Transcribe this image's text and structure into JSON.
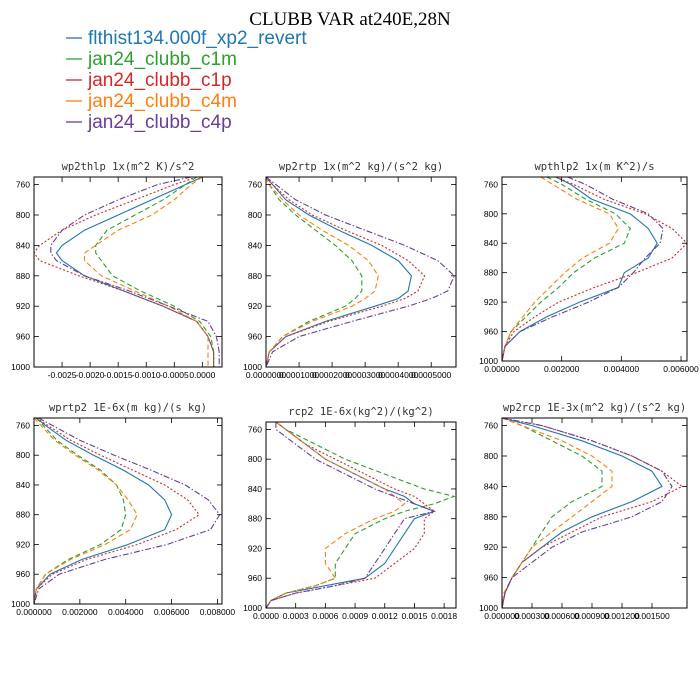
{
  "title": "CLUBB VAR at240E,28N",
  "colors": {
    "flthist134.000f_xp2_revert": "#1f77b4",
    "jan24_clubb_c1m": "#2ca02c",
    "jan24_clubb_c1p": "#d62728",
    "jan24_clubb_c4m": "#ff7f0e",
    "jan24_clubb_c4p": "#6a3d9a"
  },
  "legend": [
    {
      "name": "flthist134.000f_xp2_revert",
      "color": "#1f77b4",
      "dash": "solid"
    },
    {
      "name": "jan24_clubb_c1m",
      "color": "#2ca02c",
      "dash": "dashed"
    },
    {
      "name": "jan24_clubb_c1p",
      "color": "#d62728",
      "dash": "dotted"
    },
    {
      "name": "jan24_clubb_c4m",
      "color": "#ff7f0e",
      "dash": "dashed"
    },
    {
      "name": "jan24_clubb_c4p",
      "color": "#6a3d9a",
      "dash": "dashdot"
    }
  ],
  "chart_data": [
    {
      "type": "line",
      "title": "wp2thlp  1x(m^2 K)/s^2",
      "xlim": [
        -0.003,
        0.00035
      ],
      "ylim": [
        1000,
        750
      ],
      "xticks": [
        -0.0025,
        -0.002,
        -0.0015,
        -0.001,
        -0.0005,
        0.0
      ],
      "xtick_labels": [
        "-0.0025",
        "-0.0020",
        "-0.0015",
        "-0.0010",
        "-0.0005",
        "0.0000"
      ],
      "yticks": [
        760,
        800,
        840,
        880,
        920,
        960,
        1000
      ],
      "y": [
        750,
        760,
        780,
        800,
        820,
        840,
        850,
        860,
        880,
        900,
        920,
        940,
        960,
        980,
        1000
      ],
      "series": [
        {
          "name": "flthist134.000f_xp2_revert",
          "x": [
            0.0,
            -0.0003,
            -0.0009,
            -0.0015,
            -0.0021,
            -0.0025,
            -0.0026,
            -0.0025,
            -0.0021,
            -0.0014,
            -0.0007,
            -0.0001,
            0.0001,
            0.0002,
            0.0002
          ]
        },
        {
          "name": "jan24_clubb_c1m",
          "x": [
            -0.0001,
            -0.0003,
            -0.0007,
            -0.0012,
            -0.0017,
            -0.0019,
            -0.0019,
            -0.0018,
            -0.0016,
            -0.0011,
            -0.0005,
            -5e-05,
            0.00015,
            0.0002,
            0.0002
          ]
        },
        {
          "name": "jan24_clubb_c1p",
          "x": [
            -0.0001,
            -0.0005,
            -0.0012,
            -0.0019,
            -0.0025,
            -0.0029,
            -0.003,
            -0.0029,
            -0.0022,
            -0.0014,
            -0.0007,
            -0.0001,
            0.0001,
            0.0002,
            0.0002
          ]
        },
        {
          "name": "jan24_clubb_c4m",
          "x": [
            0.0,
            -0.0002,
            -0.0005,
            -0.0009,
            -0.0015,
            -0.0019,
            -0.0021,
            -0.0021,
            -0.0018,
            -0.0012,
            -0.0006,
            -0.0001,
            0.0001,
            0.0001,
            0.0001
          ]
        },
        {
          "name": "jan24_clubb_c4p",
          "x": [
            -0.0002,
            -0.0008,
            -0.0015,
            -0.0021,
            -0.0025,
            -0.0027,
            -0.0027,
            -0.0026,
            -0.0021,
            -0.0013,
            -0.0006,
            0.0001,
            0.00025,
            0.0003,
            0.0003
          ]
        }
      ]
    },
    {
      "type": "line",
      "title": "wp2rtp  1x(m^2 kg)/(s^2 kg)",
      "xlim": [
        0.0,
        0.000575
      ],
      "ylim": [
        1000,
        750
      ],
      "xticks": [
        0.0,
        0.0001,
        0.0002,
        0.0003,
        0.0004,
        0.0005
      ],
      "xtick_labels": [
        "0.0000000",
        "0.0001000",
        "0.0002000",
        "0.0003000",
        "0.0004000",
        "0.0005000"
      ],
      "yticks": [
        760,
        800,
        840,
        880,
        920,
        960,
        1000
      ],
      "y": [
        750,
        760,
        780,
        800,
        820,
        840,
        860,
        880,
        900,
        910,
        920,
        940,
        960,
        980,
        1000
      ],
      "series": [
        {
          "name": "flthist134.000f_xp2_revert",
          "x": [
            0.0,
            2e-05,
            6e-05,
            0.00013,
            0.00022,
            0.00032,
            0.0004,
            0.00044,
            0.00043,
            0.0004,
            0.00033,
            0.00018,
            6e-05,
            1e-05,
            0.0
          ]
        },
        {
          "name": "jan24_clubb_c1m",
          "x": [
            0.0,
            1e-05,
            4e-05,
            9e-05,
            0.00015,
            0.00021,
            0.00026,
            0.00029,
            0.00029,
            0.00027,
            0.00024,
            0.00013,
            5e-05,
            1e-05,
            0.0
          ]
        },
        {
          "name": "jan24_clubb_c1p",
          "x": [
            0.0,
            2e-05,
            7e-05,
            0.00014,
            0.00024,
            0.00035,
            0.00043,
            0.00048,
            0.00046,
            0.00042,
            0.00035,
            0.00019,
            6e-05,
            1e-05,
            0.0
          ]
        },
        {
          "name": "jan24_clubb_c4m",
          "x": [
            0.0,
            1e-05,
            5e-05,
            0.0001,
            0.00017,
            0.00025,
            0.00031,
            0.00034,
            0.00033,
            0.0003,
            0.00026,
            0.00014,
            5e-05,
            1e-05,
            0.0
          ]
        },
        {
          "name": "jan24_clubb_c4p",
          "x": [
            0.0,
            3e-05,
            9e-05,
            0.00018,
            0.0003,
            0.00042,
            0.00052,
            0.00057,
            0.00055,
            0.0005,
            0.00043,
            0.00026,
            0.0001,
            2e-05,
            0.0
          ]
        }
      ]
    },
    {
      "type": "line",
      "title": "wpthlp2  1x(m K^2)/s",
      "xlim": [
        0.0,
        0.0062
      ],
      "ylim": [
        1000,
        750
      ],
      "xticks": [
        0.0,
        0.002,
        0.004,
        0.006
      ],
      "xtick_labels": [
        "0.000000",
        "0.002000",
        "0.004000",
        "0.006000"
      ],
      "yticks": [
        760,
        800,
        840,
        880,
        920,
        960,
        1000
      ],
      "y": [
        750,
        760,
        780,
        800,
        820,
        840,
        860,
        880,
        900,
        920,
        940,
        960,
        980,
        1000
      ],
      "series": [
        {
          "name": "flthist134.000f_xp2_revert",
          "x": [
            0.0018,
            0.0023,
            0.003,
            0.0043,
            0.0049,
            0.0052,
            0.0049,
            0.0041,
            0.0039,
            0.0026,
            0.0015,
            0.0006,
            0.0001,
            0.0
          ]
        },
        {
          "name": "jan24_clubb_c1m",
          "x": [
            0.0015,
            0.002,
            0.0028,
            0.0038,
            0.0043,
            0.0041,
            0.0031,
            0.0024,
            0.0019,
            0.0013,
            0.0008,
            0.0003,
            0.0001,
            0.0
          ]
        },
        {
          "name": "jan24_clubb_c1p",
          "x": [
            0.0018,
            0.0024,
            0.0034,
            0.0048,
            0.0057,
            0.0062,
            0.0057,
            0.0045,
            0.0031,
            0.0019,
            0.0011,
            0.0004,
            0.0001,
            0.0
          ]
        },
        {
          "name": "jan24_clubb_c4m",
          "x": [
            0.0013,
            0.0017,
            0.0025,
            0.0036,
            0.0039,
            0.0036,
            0.0027,
            0.0021,
            0.0016,
            0.0011,
            0.0007,
            0.0003,
            0.0001,
            0.0
          ]
        },
        {
          "name": "jan24_clubb_c4p",
          "x": [
            0.0022,
            0.0028,
            0.0037,
            0.0049,
            0.0054,
            0.0053,
            0.0048,
            0.0044,
            0.0039,
            0.0029,
            0.0017,
            0.0006,
            0.0001,
            0.0
          ]
        }
      ]
    },
    {
      "type": "line",
      "title": "wprtp2  1E-6x(m kg)/(s kg)",
      "xlim": [
        0.0,
        0.0082
      ],
      "ylim": [
        1000,
        750
      ],
      "xticks": [
        0.0,
        0.002,
        0.004,
        0.006,
        0.008
      ],
      "xtick_labels": [
        "0.000000",
        "0.002000",
        "0.004000",
        "0.006000",
        "0.008000"
      ],
      "yticks": [
        760,
        800,
        840,
        880,
        920,
        960,
        1000
      ],
      "y": [
        750,
        760,
        780,
        800,
        820,
        840,
        860,
        880,
        900,
        920,
        940,
        960,
        980,
        1000
      ],
      "series": [
        {
          "name": "flthist134.000f_xp2_revert",
          "x": [
            0.0001,
            0.0005,
            0.0014,
            0.0026,
            0.0039,
            0.005,
            0.0057,
            0.006,
            0.0057,
            0.0041,
            0.0021,
            0.0007,
            0.0001,
            0.0
          ]
        },
        {
          "name": "jan24_clubb_c1m",
          "x": [
            0.0001,
            0.0004,
            0.001,
            0.0019,
            0.0029,
            0.0036,
            0.0039,
            0.004,
            0.0038,
            0.0029,
            0.0015,
            0.0005,
            0.0001,
            0.0
          ]
        },
        {
          "name": "jan24_clubb_c1p",
          "x": [
            0.0001,
            0.0006,
            0.0016,
            0.0029,
            0.0043,
            0.0057,
            0.0067,
            0.0072,
            0.0062,
            0.0045,
            0.0023,
            0.0008,
            0.0001,
            0.0
          ]
        },
        {
          "name": "jan24_clubb_c4m",
          "x": [
            0.0,
            0.0003,
            0.0009,
            0.0018,
            0.0028,
            0.0036,
            0.0041,
            0.0045,
            0.0042,
            0.0031,
            0.0016,
            0.0005,
            0.0001,
            0.0
          ]
        },
        {
          "name": "jan24_clubb_c4p",
          "x": [
            0.0002,
            0.0008,
            0.002,
            0.0035,
            0.0051,
            0.0066,
            0.0076,
            0.0081,
            0.0077,
            0.0058,
            0.0031,
            0.0011,
            0.0002,
            0.0
          ]
        }
      ]
    },
    {
      "type": "line",
      "title": "rcp2  1E-6x(kg^2)/(kg^2)",
      "xlim": [
        0.0,
        0.00192
      ],
      "ylim": [
        1000,
        750
      ],
      "xticks": [
        0.0,
        0.0003,
        0.0006,
        0.0009,
        0.0012,
        0.0015,
        0.0018
      ],
      "xtick_labels": [
        "0.0000",
        "0.0003",
        "0.0006",
        "0.0009",
        "0.0012",
        "0.0015",
        "0.0018"
      ],
      "yticks": [
        760,
        800,
        840,
        880,
        920,
        960,
        1000
      ],
      "y": [
        750,
        760,
        780,
        800,
        820,
        840,
        850,
        860,
        870,
        880,
        900,
        920,
        940,
        960,
        970,
        980,
        990,
        1000
      ],
      "series": [
        {
          "name": "flthist134.000f_xp2_revert",
          "x": [
            0.0001,
            0.0002,
            0.0004,
            0.0006,
            0.0009,
            0.0012,
            0.0014,
            0.0015,
            0.0017,
            0.0015,
            0.0014,
            0.0013,
            0.0012,
            0.001,
            0.0006,
            0.0002,
            5e-05,
            0.0
          ]
        },
        {
          "name": "jan24_clubb_c1m",
          "x": [
            0.0001,
            0.0002,
            0.0005,
            0.0008,
            0.0012,
            0.0016,
            0.0019,
            0.0017,
            0.0014,
            0.0012,
            0.0009,
            0.0008,
            0.0007,
            0.0007,
            0.0005,
            0.0002,
            5e-05,
            0.0
          ]
        },
        {
          "name": "jan24_clubb_c1p",
          "x": [
            0.0001,
            0.0002,
            0.0004,
            0.0007,
            0.001,
            0.0013,
            0.0015,
            0.0016,
            0.0017,
            0.0016,
            0.0016,
            0.0015,
            0.0013,
            0.0011,
            0.0007,
            0.0003,
            5e-05,
            0.0
          ]
        },
        {
          "name": "jan24_clubb_c4m",
          "x": [
            0.0001,
            0.0002,
            0.0004,
            0.0006,
            0.0009,
            0.0012,
            0.0013,
            0.0014,
            0.0013,
            0.0011,
            0.0008,
            0.0006,
            0.0006,
            0.0007,
            0.0005,
            0.0002,
            5e-05,
            0.0
          ]
        },
        {
          "name": "jan24_clubb_c4p",
          "x": [
            0.0001,
            0.0001,
            0.0003,
            0.0005,
            0.0008,
            0.0011,
            0.0013,
            0.0015,
            0.0017,
            0.0014,
            0.0013,
            0.0012,
            0.0011,
            0.001,
            0.0007,
            0.0003,
            5e-05,
            0.0
          ]
        }
      ]
    },
    {
      "type": "line",
      "title": "wp2rcp  1E-3x(m^2 kg)/(s^2 kg)",
      "xlim": [
        0.0,
        0.00185
      ],
      "ylim": [
        1000,
        750
      ],
      "xticks": [
        0.0,
        0.0003,
        0.0006,
        0.0009,
        0.0012,
        0.0015
      ],
      "xtick_labels": [
        "0.000000",
        "0.000300",
        "0.000600",
        "0.000900",
        "0.001200",
        "0.001500"
      ],
      "yticks": [
        760,
        800,
        840,
        880,
        920,
        960,
        1000
      ],
      "y": [
        750,
        760,
        780,
        800,
        820,
        840,
        860,
        880,
        900,
        920,
        940,
        960,
        980,
        1000
      ],
      "series": [
        {
          "name": "flthist134.000f_xp2_revert",
          "x": [
            0.0,
            0.0003,
            0.0008,
            0.0012,
            0.0015,
            0.0016,
            0.0013,
            0.0009,
            0.0006,
            0.0004,
            0.0002,
            0.0001,
            3e-05,
            0.0
          ]
        },
        {
          "name": "jan24_clubb_c1m",
          "x": [
            0.0,
            0.0002,
            0.0005,
            0.0008,
            0.001,
            0.001,
            0.0007,
            0.0005,
            0.0004,
            0.0003,
            0.0002,
            0.0001,
            3e-05,
            0.0
          ]
        },
        {
          "name": "jan24_clubb_c1p",
          "x": [
            0.0,
            0.0004,
            0.0009,
            0.0013,
            0.0016,
            0.0018,
            0.0015,
            0.001,
            0.0007,
            0.0004,
            0.0002,
            0.0001,
            3e-05,
            0.0
          ]
        },
        {
          "name": "jan24_clubb_c4m",
          "x": [
            0.0,
            0.0002,
            0.0006,
            0.0009,
            0.0011,
            0.0011,
            0.0009,
            0.0007,
            0.0005,
            0.0003,
            0.0002,
            0.0001,
            2e-05,
            0.0
          ]
        },
        {
          "name": "jan24_clubb_c4p",
          "x": [
            0.0,
            0.0004,
            0.0009,
            0.0013,
            0.0016,
            0.0017,
            0.0016,
            0.0013,
            0.0008,
            0.0005,
            0.0003,
            0.0001,
            3e-05,
            0.0
          ]
        }
      ]
    }
  ]
}
